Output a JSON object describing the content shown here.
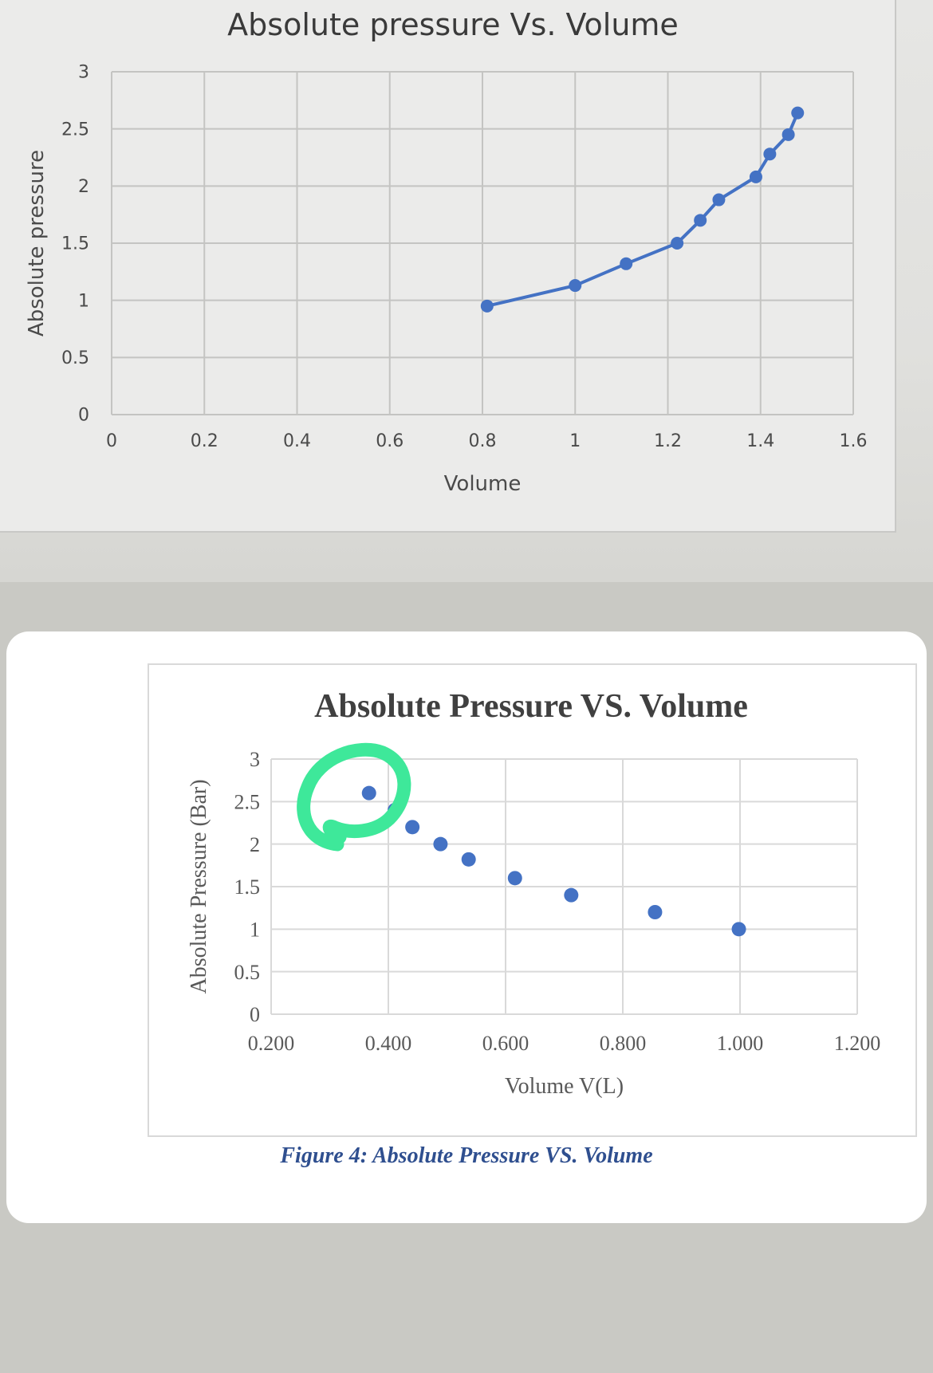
{
  "charts": [
    {
      "chart_data": {
        "type": "line",
        "title": "Absolute pressure Vs. Volume",
        "xlabel": "Volume",
        "ylabel": "Absolute pressure",
        "xlim": [
          0,
          1.6
        ],
        "ylim": [
          0,
          3
        ],
        "x_ticks": [
          "0",
          "0.2",
          "0.4",
          "0.6",
          "0.8",
          "1",
          "1.2",
          "1.4",
          "1.6"
        ],
        "y_ticks": [
          "0",
          "0.5",
          "1",
          "1.5",
          "2",
          "2.5",
          "3"
        ],
        "grid": true,
        "series": [
          {
            "color": "#4472c4",
            "x": [
              0.81,
              1.0,
              1.11,
              1.22,
              1.27,
              1.31,
              1.39,
              1.42,
              1.46,
              1.48
            ],
            "y": [
              0.95,
              1.13,
              1.32,
              1.5,
              1.7,
              1.88,
              2.08,
              2.28,
              2.45,
              2.64
            ]
          }
        ]
      }
    },
    {
      "chart_data": {
        "type": "scatter",
        "title": "Absolute Pressure VS. Volume",
        "xlabel": "Volume V(L)",
        "ylabel": "Absolute Pressure (Bar)",
        "xlim": [
          0.2,
          1.2
        ],
        "ylim": [
          0,
          3
        ],
        "x_ticks": [
          "0.200",
          "0.400",
          "0.600",
          "0.800",
          "1.000",
          "1.200"
        ],
        "y_ticks": [
          "0",
          "0.5",
          "1",
          "1.5",
          "2",
          "2.5",
          "3"
        ],
        "grid": true,
        "series": [
          {
            "color": "#4472c4",
            "x": [
              0.367,
              0.411,
              0.441,
              0.489,
              0.537,
              0.616,
              0.712,
              0.855,
              0.998
            ],
            "y": [
              2.6,
              2.4,
              2.2,
              2.0,
              1.82,
              1.6,
              1.4,
              1.2,
              1.0
            ]
          }
        ]
      }
    }
  ],
  "caption": "Figure 4: Absolute Pressure VS. Volume",
  "annotation": {
    "type": "hand-drawn circle",
    "color": "#3ee89a"
  }
}
